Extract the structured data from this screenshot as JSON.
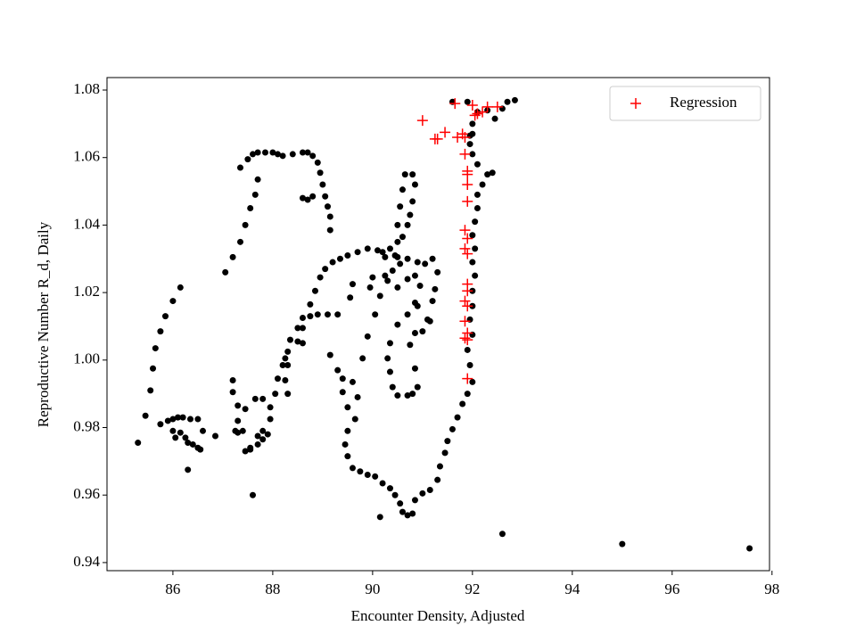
{
  "chart_data": {
    "type": "scatter",
    "xlabel": "Encounter Density, Adjusted",
    "ylabel": "Reproductive Number R_d, Daily",
    "xlim": [
      84.68,
      97.95
    ],
    "ylim": [
      0.9376,
      1.0837
    ],
    "xticks": [
      86,
      88,
      90,
      92,
      94,
      96,
      98
    ],
    "yticks": [
      0.94,
      0.96,
      0.98,
      {
        "value": 1,
        "label": "1.00"
      },
      1.02,
      1.04,
      1.06,
      1.08
    ],
    "legend": "upper right",
    "series": [
      {
        "color": "#000000",
        "marker": "o",
        "x": [
          85.3,
          85.45,
          85.55,
          85.6,
          85.65,
          85.75,
          85.85,
          86.0,
          86.15,
          85.75,
          85.9,
          86.0,
          86.1,
          86.2,
          86.35,
          86.5,
          86.6,
          86.0,
          86.05,
          86.15,
          86.25,
          86.3,
          86.4,
          86.5,
          86.55,
          86.3,
          86.85,
          87.05,
          87.2,
          87.35,
          87.45,
          87.55,
          87.65,
          87.7,
          87.35,
          87.5,
          87.6,
          87.7,
          87.85,
          88.0,
          88.1,
          88.2,
          88.4,
          88.6,
          88.7,
          88.8,
          88.9,
          88.95,
          89.0,
          89.05,
          89.1,
          89.15,
          89.15,
          88.8,
          88.7,
          88.6,
          87.55,
          87.7,
          87.8,
          87.9,
          87.95,
          87.95,
          88.05,
          88.1,
          88.2,
          88.3,
          88.35,
          88.5,
          88.6,
          88.75,
          88.85,
          88.95,
          89.05,
          89.2,
          89.35,
          89.5,
          89.7,
          89.9,
          90.1,
          90.2,
          90.35,
          90.5,
          90.55,
          90.7,
          90.9,
          91.05,
          91.2,
          88.6,
          88.75,
          88.9,
          89.1,
          89.3,
          88.6,
          88.5,
          88.3,
          88.25,
          88.3,
          88.25,
          87.2,
          87.2,
          87.3,
          87.3,
          87.25,
          87.45,
          87.65,
          87.8,
          87.3,
          87.4,
          87.45,
          87.55,
          87.6,
          87.7,
          87.8,
          89.4,
          89.4,
          89.5,
          89.65,
          89.5,
          89.45,
          89.5,
          89.6,
          89.75,
          89.9,
          90.05,
          90.2,
          90.35,
          90.45,
          90.55,
          90.6,
          90.7,
          90.8,
          90.85,
          91.0,
          91.15,
          91.3,
          91.35,
          91.45,
          91.5,
          91.6,
          91.7,
          91.8,
          91.9,
          90.15,
          89.15,
          89.3,
          89.6,
          89.7,
          89.8,
          89.9,
          90.05,
          90.15,
          90.3,
          90.4,
          90.45,
          90.5,
          90.5,
          90.55,
          90.6,
          90.65,
          90.8,
          90.85,
          90.8,
          90.75,
          90.7,
          90.6,
          90.0,
          90.25,
          90.5,
          90.7,
          90.85,
          90.95,
          90.85,
          90.7,
          90.5,
          90.35,
          90.3,
          90.35,
          90.4,
          90.5,
          90.7,
          90.8,
          90.9,
          90.85,
          90.75,
          90.85,
          91.0,
          91.1,
          91.2,
          91.25,
          91.3,
          91.15,
          89.55,
          89.6,
          89.95,
          90.25,
          90.9,
          92.0,
          91.95,
          91.9,
          92.0,
          91.95,
          92.0,
          92.0,
          92.05,
          92.0,
          92.05,
          92.0,
          92.05,
          92.1,
          92.1,
          92.2,
          92.3,
          92.4,
          92.1,
          92.0,
          91.95,
          91.95,
          92.0,
          92.1,
          92.3,
          92.45,
          92.6,
          92.7,
          92.85,
          91.6,
          91.9,
          92.0,
          92.6,
          95.0,
          97.55
        ],
        "values": [
          0.9755,
          0.9835,
          0.991,
          0.9975,
          1.0035,
          1.0085,
          1.013,
          1.0175,
          1.0215,
          0.981,
          0.982,
          0.9825,
          0.983,
          0.983,
          0.9825,
          0.9825,
          0.979,
          0.979,
          0.977,
          0.9785,
          0.977,
          0.9755,
          0.975,
          0.974,
          0.9735,
          0.9675,
          0.9775,
          1.026,
          1.0305,
          1.035,
          1.04,
          1.045,
          1.049,
          1.0535,
          1.057,
          1.0595,
          1.061,
          1.0615,
          1.0615,
          1.0615,
          1.061,
          1.0605,
          1.061,
          1.0615,
          1.0615,
          1.0605,
          1.0585,
          1.0555,
          1.052,
          1.0485,
          1.0455,
          1.0425,
          1.0385,
          1.0485,
          1.0475,
          1.048,
          0.974,
          0.975,
          0.9765,
          0.978,
          0.9825,
          0.986,
          0.99,
          0.9945,
          0.9985,
          1.0025,
          1.006,
          1.0095,
          1.0125,
          1.0165,
          1.0205,
          1.0245,
          1.027,
          1.029,
          1.03,
          1.031,
          1.032,
          1.033,
          1.0325,
          1.032,
          1.033,
          1.0305,
          1.0285,
          1.03,
          1.029,
          1.0285,
          1.03,
          1.0095,
          1.013,
          1.0135,
          1.0135,
          1.0135,
          1.005,
          1.0055,
          0.9985,
          0.994,
          0.99,
          1.0005,
          0.994,
          0.9905,
          0.9865,
          0.982,
          0.979,
          0.9855,
          0.9885,
          0.9885,
          0.9785,
          0.979,
          0.973,
          0.9735,
          0.96,
          0.9775,
          0.979,
          0.9945,
          0.9905,
          0.986,
          0.9825,
          0.979,
          0.975,
          0.9715,
          0.968,
          0.967,
          0.966,
          0.9655,
          0.9635,
          0.962,
          0.96,
          0.9575,
          0.955,
          0.954,
          0.9545,
          0.9585,
          0.9605,
          0.9615,
          0.9645,
          0.9685,
          0.9725,
          0.976,
          0.9795,
          0.983,
          0.987,
          0.99,
          0.9535,
          1.0015,
          0.997,
          0.9935,
          0.989,
          1.0005,
          1.007,
          1.0135,
          1.019,
          1.0235,
          1.0265,
          1.031,
          1.035,
          1.04,
          1.0455,
          1.0505,
          1.055,
          1.055,
          1.052,
          1.047,
          1.043,
          1.04,
          1.0365,
          1.0245,
          1.025,
          1.0215,
          1.024,
          1.025,
          1.022,
          1.017,
          1.0135,
          1.0105,
          1.005,
          1.0005,
          0.9965,
          0.992,
          0.9895,
          0.9895,
          0.99,
          0.992,
          0.9975,
          1.0045,
          1.008,
          1.0085,
          1.012,
          1.0175,
          1.021,
          1.026,
          1.0115,
          1.0185,
          1.0225,
          1.0215,
          1.0305,
          1.016,
          0.9935,
          0.9985,
          1.003,
          1.0075,
          1.012,
          1.016,
          1.0205,
          1.025,
          1.029,
          1.033,
          1.037,
          1.041,
          1.045,
          1.049,
          1.052,
          1.055,
          1.0555,
          1.058,
          1.061,
          1.064,
          1.0665,
          1.07,
          1.0735,
          1.074,
          1.0715,
          1.0745,
          1.0765,
          1.077,
          1.0765,
          1.0765,
          1.067,
          0.9485,
          0.9455,
          0.9442
        ]
      },
      {
        "name": "Regression",
        "color": "#ff0000",
        "marker": "+",
        "x": [
          91.0,
          91.3,
          91.45,
          91.25,
          91.65,
          91.7,
          91.8,
          91.85,
          91.85,
          91.9,
          91.9,
          91.9,
          91.9,
          91.85,
          91.9,
          91.85,
          91.9,
          91.9,
          91.9,
          91.85,
          91.9,
          91.85,
          91.9,
          91.85,
          91.9,
          91.9,
          92.0,
          92.1,
          92.2,
          92.3,
          92.5,
          92.05
        ],
        "values": [
          1.071,
          1.0655,
          1.0675,
          1.0655,
          1.076,
          1.066,
          1.067,
          1.066,
          1.061,
          1.056,
          1.052,
          1.055,
          1.047,
          1.0385,
          1.036,
          1.033,
          1.0315,
          1.0225,
          1.0205,
          1.0175,
          1.016,
          1.0115,
          1.008,
          1.0065,
          1.006,
          0.9945,
          1.0755,
          1.073,
          1.0735,
          1.075,
          1.075,
          1.0725
        ]
      }
    ]
  }
}
